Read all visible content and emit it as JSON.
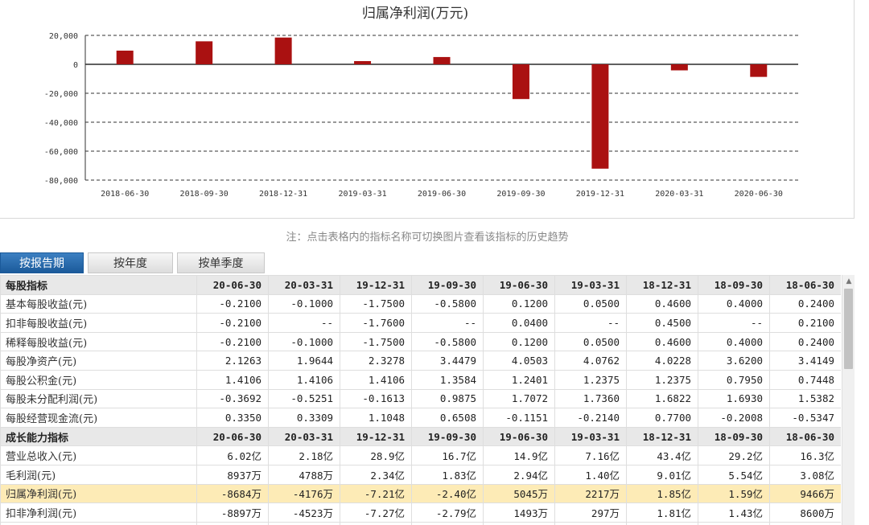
{
  "chart_data": {
    "type": "bar",
    "title": "归属净利润(万元)",
    "categories": [
      "2018-06-30",
      "2018-09-30",
      "2018-12-31",
      "2019-03-31",
      "2019-06-30",
      "2019-09-30",
      "2019-12-31",
      "2020-03-31",
      "2020-06-30"
    ],
    "values": [
      9466,
      15900,
      18500,
      2217,
      5045,
      -24000,
      -72100,
      -4176,
      -8684
    ],
    "ylim": [
      -80000,
      20000
    ],
    "yticks": [
      20000,
      0,
      -20000,
      -40000,
      -60000,
      -80000
    ],
    "ytick_labels": [
      "20,000",
      "0",
      "-20,000",
      "-40,000",
      "-60,000",
      "-80,000"
    ],
    "bar_color": "#aa1111",
    "grid": "dashed horizontal"
  },
  "note": "注：点击表格内的指标名称可切换图片查看该指标的历史趋势",
  "tabs": [
    {
      "label": "按报告期",
      "active": true
    },
    {
      "label": "按年度",
      "active": false
    },
    {
      "label": "按单季度",
      "active": false
    }
  ],
  "table": {
    "rows": [
      {
        "type": "header",
        "cells": [
          "每股指标",
          "20-06-30",
          "20-03-31",
          "19-12-31",
          "19-09-30",
          "19-06-30",
          "19-03-31",
          "18-12-31",
          "18-09-30",
          "18-06-30"
        ]
      },
      {
        "type": "data",
        "cells": [
          "基本每股收益(元)",
          "-0.2100",
          "-0.1000",
          "-1.7500",
          "-0.5800",
          "0.1200",
          "0.0500",
          "0.4600",
          "0.4000",
          "0.2400"
        ]
      },
      {
        "type": "data",
        "cells": [
          "扣非每股收益(元)",
          "-0.2100",
          "--",
          "-1.7600",
          "--",
          "0.0400",
          "--",
          "0.4500",
          "--",
          "0.2100"
        ]
      },
      {
        "type": "data",
        "cells": [
          "稀释每股收益(元)",
          "-0.2100",
          "-0.1000",
          "-1.7500",
          "-0.5800",
          "0.1200",
          "0.0500",
          "0.4600",
          "0.4000",
          "0.2400"
        ]
      },
      {
        "type": "data",
        "cells": [
          "每股净资产(元)",
          "2.1263",
          "1.9644",
          "2.3278",
          "3.4479",
          "4.0503",
          "4.0762",
          "4.0228",
          "3.6200",
          "3.4149"
        ]
      },
      {
        "type": "data",
        "cells": [
          "每股公积金(元)",
          "1.4106",
          "1.4106",
          "1.4106",
          "1.3584",
          "1.2401",
          "1.2375",
          "1.2375",
          "0.7950",
          "0.7448"
        ]
      },
      {
        "type": "data",
        "cells": [
          "每股未分配利润(元)",
          "-0.3692",
          "-0.5251",
          "-0.1613",
          "0.9875",
          "1.7072",
          "1.7360",
          "1.6822",
          "1.6930",
          "1.5382"
        ]
      },
      {
        "type": "data",
        "cells": [
          "每股经营现金流(元)",
          "0.3350",
          "0.3309",
          "1.1048",
          "0.6508",
          "-0.1151",
          "-0.2140",
          "0.7700",
          "-0.2008",
          "-0.5347"
        ]
      },
      {
        "type": "header",
        "cells": [
          "成长能力指标",
          "20-06-30",
          "20-03-31",
          "19-12-31",
          "19-09-30",
          "19-06-30",
          "19-03-31",
          "18-12-31",
          "18-09-30",
          "18-06-30"
        ]
      },
      {
        "type": "data",
        "cells": [
          "营业总收入(元)",
          "6.02亿",
          "2.18亿",
          "28.9亿",
          "16.7亿",
          "14.9亿",
          "7.16亿",
          "43.4亿",
          "29.2亿",
          "16.3亿"
        ]
      },
      {
        "type": "data",
        "cells": [
          "毛利润(元)",
          "8937万",
          "4788万",
          "2.34亿",
          "1.83亿",
          "2.94亿",
          "1.40亿",
          "9.01亿",
          "5.54亿",
          "3.08亿"
        ]
      },
      {
        "type": "highlight",
        "cells": [
          "归属净利润(元)",
          "-8684万",
          "-4176万",
          "-7.21亿",
          "-2.40亿",
          "5045万",
          "2217万",
          "1.85亿",
          "1.59亿",
          "9466万"
        ]
      },
      {
        "type": "data",
        "cells": [
          "扣非净利润(元)",
          "-8897万",
          "-4523万",
          "-7.27亿",
          "-2.79亿",
          "1493万",
          "297万",
          "1.81亿",
          "1.43亿",
          "8600万"
        ]
      },
      {
        "type": "data",
        "cells": [
          "",
          "",
          "",
          "",
          "",
          "",
          "",
          "",
          "",
          ""
        ]
      }
    ]
  }
}
